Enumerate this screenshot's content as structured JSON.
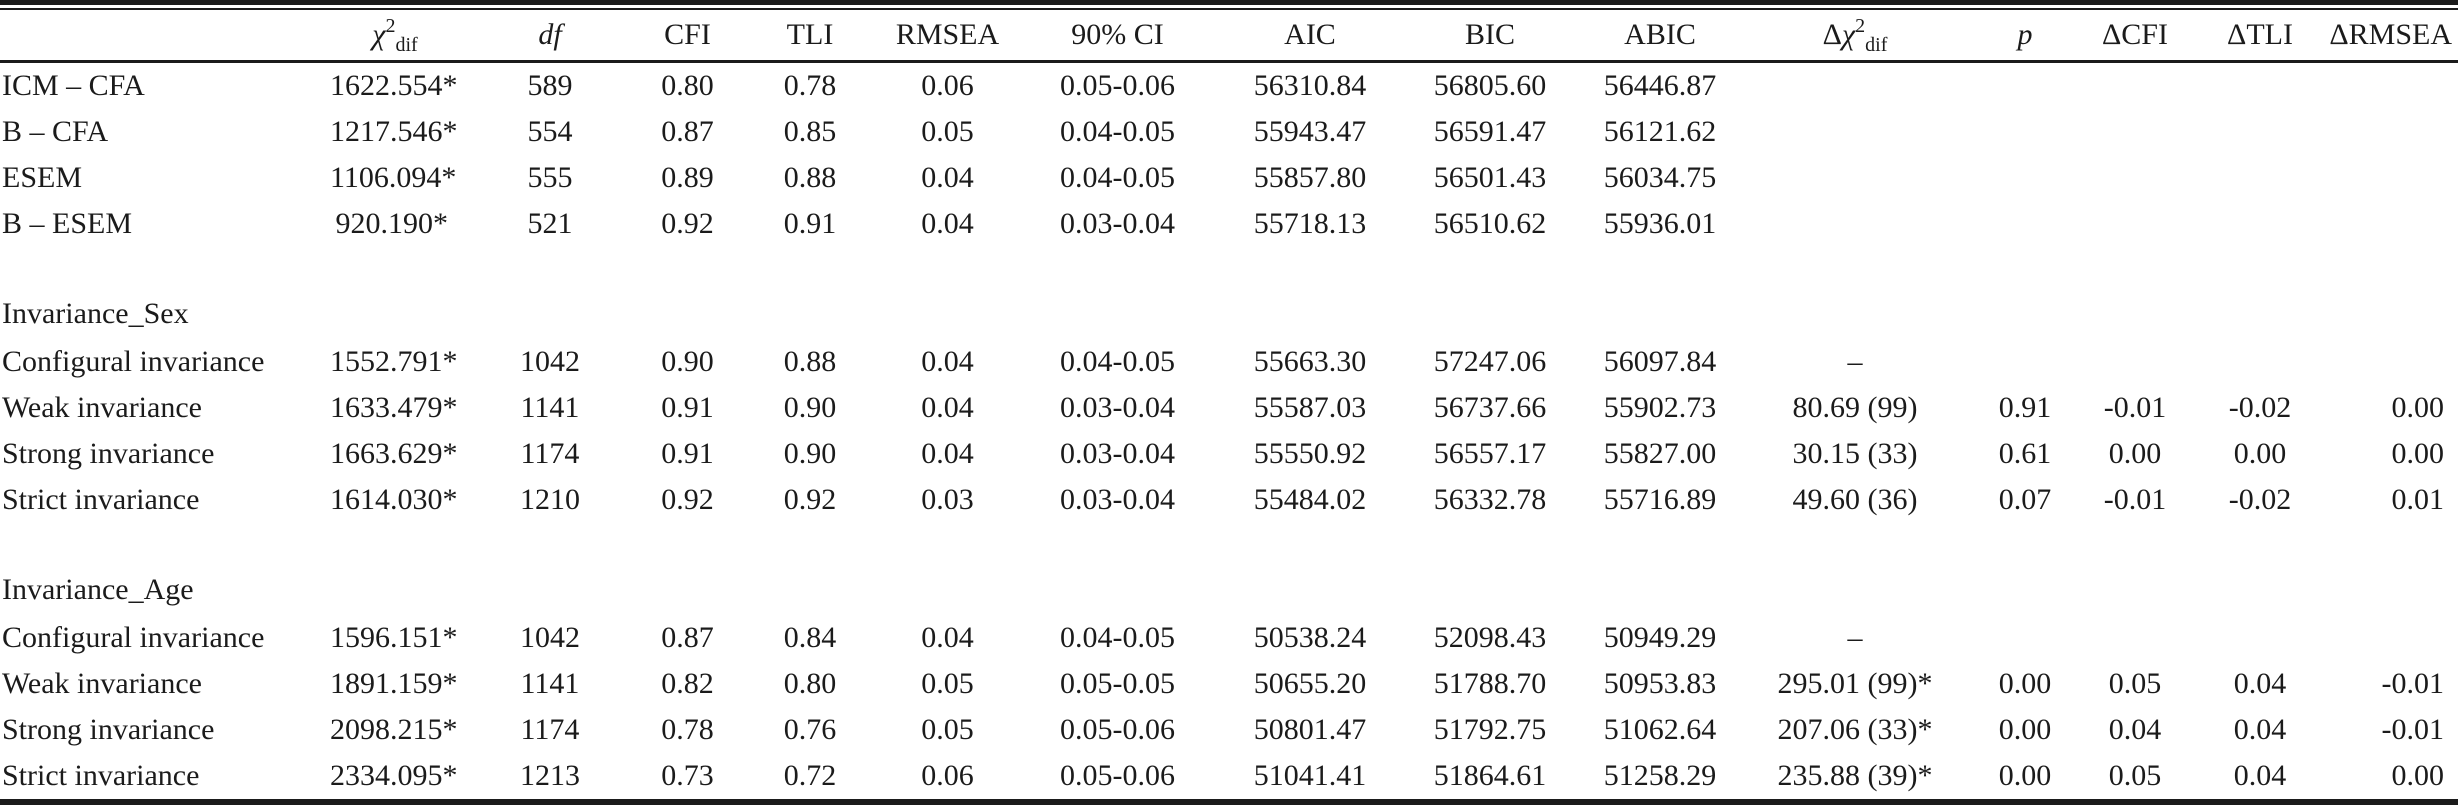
{
  "table": {
    "columns": [
      {
        "id": "model",
        "label": {
          "parts": []
        }
      },
      {
        "id": "chi2dif",
        "label": {
          "parts": [
            {
              "t": "χ",
              "i": true
            },
            {
              "sup": "2"
            },
            {
              "sub": "dif"
            }
          ]
        }
      },
      {
        "id": "df",
        "label": {
          "parts": [
            {
              "t": "df",
              "i": true
            }
          ]
        }
      },
      {
        "id": "cfi",
        "label": {
          "parts": [
            {
              "t": "CFI"
            }
          ]
        }
      },
      {
        "id": "tli",
        "label": {
          "parts": [
            {
              "t": "TLI"
            }
          ]
        }
      },
      {
        "id": "rmsea",
        "label": {
          "parts": [
            {
              "t": "RMSEA"
            }
          ]
        }
      },
      {
        "id": "ci90",
        "label": {
          "parts": [
            {
              "t": "90% CI"
            }
          ]
        }
      },
      {
        "id": "aic",
        "label": {
          "parts": [
            {
              "t": "AIC"
            }
          ]
        }
      },
      {
        "id": "bic",
        "label": {
          "parts": [
            {
              "t": "BIC"
            }
          ]
        }
      },
      {
        "id": "abic",
        "label": {
          "parts": [
            {
              "t": "ABIC"
            }
          ]
        }
      },
      {
        "id": "dchi2dif",
        "label": {
          "parts": [
            {
              "t": "Δ"
            },
            {
              "t": "χ",
              "i": true
            },
            {
              "sup": "2"
            },
            {
              "sub": "dif"
            }
          ]
        }
      },
      {
        "id": "p",
        "label": {
          "parts": [
            {
              "t": "p",
              "i": true
            }
          ]
        }
      },
      {
        "id": "dcfi",
        "label": {
          "parts": [
            {
              "t": "ΔCFI"
            }
          ]
        }
      },
      {
        "id": "dtli",
        "label": {
          "parts": [
            {
              "t": "ΔTLI"
            }
          ]
        }
      },
      {
        "id": "drmsea",
        "label": {
          "parts": [
            {
              "t": "ΔRMSEA"
            }
          ]
        }
      }
    ],
    "rows": [
      {
        "type": "data",
        "cells": [
          "ICM – CFA",
          "1622.554*",
          "589",
          "0.80",
          "0.78",
          "0.06",
          "0.05-0.06",
          "56310.84",
          "56805.60",
          "56446.87",
          "",
          "",
          "",
          "",
          ""
        ]
      },
      {
        "type": "data",
        "cells": [
          "B – CFA",
          "1217.546*",
          "554",
          "0.87",
          "0.85",
          "0.05",
          "0.04-0.05",
          "55943.47",
          "56591.47",
          "56121.62",
          "",
          "",
          "",
          "",
          ""
        ]
      },
      {
        "type": "data",
        "cells": [
          "ESEM",
          "1106.094*",
          "555",
          "0.89",
          "0.88",
          "0.04",
          "0.04-0.05",
          "55857.80",
          "56501.43",
          "56034.75",
          "",
          "",
          "",
          "",
          ""
        ]
      },
      {
        "type": "data",
        "cells": [
          "B – ESEM",
          "920.190*",
          "521",
          "0.92",
          "0.91",
          "0.04",
          "0.03-0.04",
          "55718.13",
          "56510.62",
          "55936.01",
          "",
          "",
          "",
          "",
          ""
        ]
      },
      {
        "type": "section",
        "label": "Invariance_Sex"
      },
      {
        "type": "data",
        "cells": [
          "Configural invariance",
          "1552.791*",
          "1042",
          "0.90",
          "0.88",
          "0.04",
          "0.04-0.05",
          "55663.30",
          "57247.06",
          "56097.84",
          "–",
          "",
          "",
          "",
          ""
        ]
      },
      {
        "type": "data",
        "cells": [
          "Weak invariance",
          "1633.479*",
          "1141",
          "0.91",
          "0.90",
          "0.04",
          "0.03-0.04",
          "55587.03",
          "56737.66",
          "55902.73",
          "80.69 (99)",
          "0.91",
          "-0.01",
          "-0.02",
          "0.00"
        ]
      },
      {
        "type": "data",
        "cells": [
          "Strong invariance",
          "1663.629*",
          "1174",
          "0.91",
          "0.90",
          "0.04",
          "0.03-0.04",
          "55550.92",
          "56557.17",
          "55827.00",
          "30.15 (33)",
          "0.61",
          "0.00",
          "0.00",
          "0.00"
        ]
      },
      {
        "type": "data",
        "cells": [
          "Strict invariance",
          "1614.030*",
          "1210",
          "0.92",
          "0.92",
          "0.03",
          "0.03-0.04",
          "55484.02",
          "56332.78",
          "55716.89",
          "49.60 (36)",
          "0.07",
          "-0.01",
          "-0.02",
          "0.01"
        ]
      },
      {
        "type": "section",
        "label": "Invariance_Age"
      },
      {
        "type": "data",
        "cells": [
          "Configural invariance",
          "1596.151*",
          "1042",
          "0.87",
          "0.84",
          "0.04",
          "0.04-0.05",
          "50538.24",
          "52098.43",
          "50949.29",
          "–",
          "",
          "",
          "",
          ""
        ]
      },
      {
        "type": "data",
        "cells": [
          "Weak invariance",
          "1891.159*",
          "1141",
          "0.82",
          "0.80",
          "0.05",
          "0.05-0.05",
          "50655.20",
          "51788.70",
          "50953.83",
          "295.01 (99)*",
          "0.00",
          "0.05",
          "0.04",
          "-0.01"
        ]
      },
      {
        "type": "data",
        "cells": [
          "Strong invariance",
          "2098.215*",
          "1174",
          "0.78",
          "0.76",
          "0.05",
          "0.05-0.06",
          "50801.47",
          "51792.75",
          "51062.64",
          "207.06 (33)*",
          "0.00",
          "0.04",
          "0.04",
          "-0.01"
        ]
      },
      {
        "type": "data",
        "cells": [
          "Strict invariance",
          "2334.095*",
          "1213",
          "0.73",
          "0.72",
          "0.06",
          "0.05-0.06",
          "51041.41",
          "51864.61",
          "51258.29",
          "235.88 (39)*",
          "0.00",
          "0.05",
          "0.04",
          "0.00"
        ]
      }
    ]
  }
}
